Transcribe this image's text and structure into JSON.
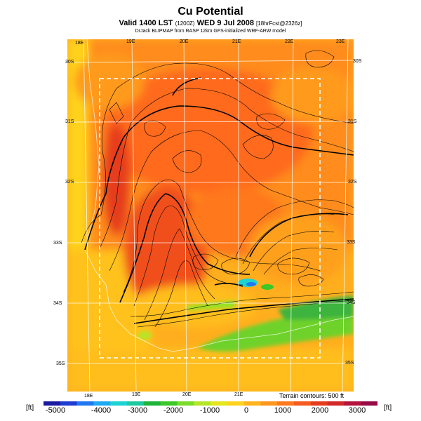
{
  "header": {
    "title": "Cu Potential",
    "subtitle_main": "Valid 1400 LST",
    "subtitle_small": "(1200Z)",
    "subtitle_date": "WED 9 Jul 2008",
    "subtitle_fcst": "[18hrFcst@2326z]",
    "credit": "DrJack BLIPMAP from RASP 12km GFS-initialized WRF-ARW model"
  },
  "map": {
    "lon_labels_top": [
      "18E",
      "19E",
      "20E",
      "21E",
      "22E",
      "23E"
    ],
    "lon_labels_bottom": [
      "18E",
      "19E",
      "20E",
      "21E"
    ],
    "lat_labels_left": [
      "30S",
      "31S",
      "32S",
      "33S",
      "34S",
      "35S"
    ],
    "lat_labels_right": [
      "30S",
      "31S",
      "32S",
      "33S",
      "34S",
      "35S"
    ],
    "terrain_note": "Terrain contours: 500 ft"
  },
  "colorbar": {
    "unit_left": "[ft]",
    "unit_right": "[ft]",
    "tick_labels": [
      "-5000",
      "-4000",
      "-3000",
      "-2000",
      "-1000",
      "0",
      "1000",
      "2000",
      "3000"
    ],
    "colors": [
      "#1a1aa0",
      "#1e3cd2",
      "#1e78f0",
      "#1eaaf0",
      "#1ed2d2",
      "#1ec8a0",
      "#1eb43c",
      "#3cc828",
      "#78dc28",
      "#b4e628",
      "#e6e61e",
      "#ffd21e",
      "#ffb41e",
      "#ff961e",
      "#ff781e",
      "#f55a1e",
      "#e63c1e",
      "#d22828",
      "#b4143c",
      "#960a46"
    ]
  }
}
